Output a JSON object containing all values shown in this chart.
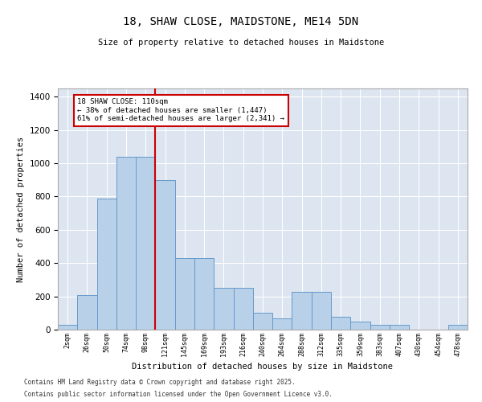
{
  "title1": "18, SHAW CLOSE, MAIDSTONE, ME14 5DN",
  "title2": "Size of property relative to detached houses in Maidstone",
  "xlabel": "Distribution of detached houses by size in Maidstone",
  "ylabel": "Number of detached properties",
  "bar_labels": [
    "2sqm",
    "26sqm",
    "50sqm",
    "74sqm",
    "98sqm",
    "121sqm",
    "145sqm",
    "169sqm",
    "193sqm",
    "216sqm",
    "240sqm",
    "264sqm",
    "288sqm",
    "312sqm",
    "335sqm",
    "359sqm",
    "383sqm",
    "407sqm",
    "430sqm",
    "454sqm",
    "478sqm"
  ],
  "bar_values": [
    30,
    210,
    790,
    1040,
    1040,
    900,
    430,
    430,
    250,
    250,
    100,
    70,
    225,
    225,
    75,
    50,
    30,
    30,
    0,
    0,
    30
  ],
  "bar_color": "#b8d0e8",
  "bar_edge_color": "#6699cc",
  "background_color": "#dce5f0",
  "grid_color": "#ffffff",
  "vline_color": "#cc0000",
  "vline_pos": 4.5,
  "annotation_text": "18 SHAW CLOSE: 110sqm\n← 38% of detached houses are smaller (1,447)\n61% of semi-detached houses are larger (2,341) →",
  "annotation_box_color": "#ffffff",
  "annotation_box_edge": "#cc0000",
  "ylim": [
    0,
    1450
  ],
  "yticks": [
    0,
    200,
    400,
    600,
    800,
    1000,
    1200,
    1400
  ],
  "footer1": "Contains HM Land Registry data © Crown copyright and database right 2025.",
  "footer2": "Contains public sector information licensed under the Open Government Licence v3.0."
}
